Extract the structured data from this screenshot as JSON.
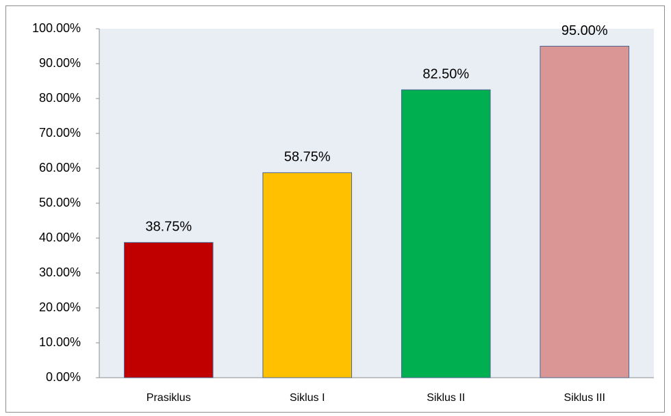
{
  "chart_data": {
    "type": "bar",
    "categories": [
      "Prasiklus",
      "Siklus I",
      "Siklus II",
      "Siklus III"
    ],
    "values": [
      38.75,
      58.75,
      82.5,
      95
    ],
    "value_labels": [
      "38.75%",
      "58.75%",
      "82.50%",
      "95.00%"
    ],
    "colors": [
      "#c00000",
      "#ffc000",
      "#00b050",
      "#d99694"
    ],
    "ylim": [
      0,
      100
    ],
    "yticks": [
      {
        "value": 0,
        "label": "0.00%"
      },
      {
        "value": 10,
        "label": "10.00%"
      },
      {
        "value": 20,
        "label": "20.00%"
      },
      {
        "value": 30,
        "label": "30.00%"
      },
      {
        "value": 40,
        "label": "40.00%"
      },
      {
        "value": 50,
        "label": "50.00%"
      },
      {
        "value": 60,
        "label": "60.00%"
      },
      {
        "value": 70,
        "label": "70.00%"
      },
      {
        "value": 80,
        "label": "80.00%"
      },
      {
        "value": 90,
        "label": "90.00%"
      },
      {
        "value": 100,
        "label": "100.00%"
      }
    ]
  }
}
